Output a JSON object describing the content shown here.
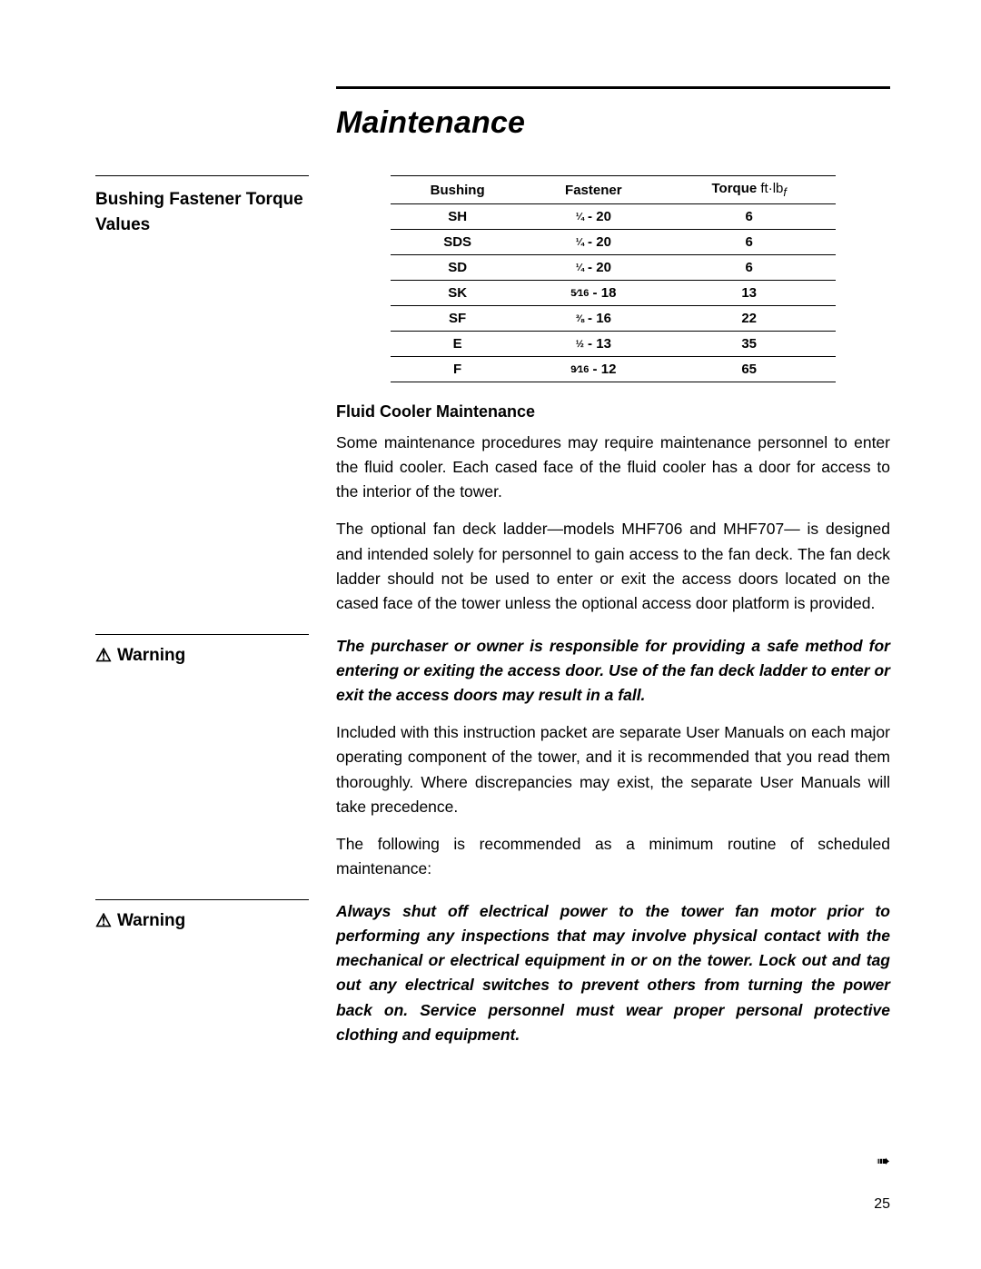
{
  "title": "Maintenance",
  "sidebar": {
    "section_heading": "Bushing Fastener Torque Values",
    "warning_label": "Warning"
  },
  "torque_table": {
    "columns": [
      "Bushing",
      "Fastener",
      "Torque"
    ],
    "torque_unit_html": "ft·lb",
    "torque_unit_sub": "f",
    "rows": [
      {
        "bushing": "SH",
        "fastener_frac": "¼",
        "fastener_tpi": "20",
        "torque": "6"
      },
      {
        "bushing": "SDS",
        "fastener_frac": "¼",
        "fastener_tpi": "20",
        "torque": "6"
      },
      {
        "bushing": "SD",
        "fastener_frac": "¼",
        "fastener_tpi": "20",
        "torque": "6"
      },
      {
        "bushing": "SK",
        "fastener_frac": "5⁄16",
        "fastener_tpi": "18",
        "torque": "13"
      },
      {
        "bushing": "SF",
        "fastener_frac": "⅜",
        "fastener_tpi": "16",
        "torque": "22"
      },
      {
        "bushing": "E",
        "fastener_frac": "½",
        "fastener_tpi": "13",
        "torque": "35"
      },
      {
        "bushing": "F",
        "fastener_frac": "9⁄16",
        "fastener_tpi": "12",
        "torque": "65"
      }
    ]
  },
  "content": {
    "fluid_heading": "Fluid Cooler Maintenance",
    "p1": "Some maintenance procedures may require maintenance personnel to enter the fluid cooler. Each cased face of the fluid cooler has a door for access to the interior of the tower.",
    "p2": "The optional fan deck ladder—models MHF706 and MHF707— is designed and intended solely for  personnel to gain access to the fan deck. The fan deck ladder should not be used to enter or exit the  access doors located on the cased face of the tower unless the optional access door platform is provided.",
    "warn1": "The purchaser or owner is responsible for providing a safe method for entering or exiting the access door. Use of the fan deck ladder to enter or exit the access doors may result in a fall.",
    "p3": "Included with this instruction packet are separate User Manuals on each major operating component of the tower, and it is recommended that you read them thoroughly. Where discrepancies may exist, the separate User Manuals will take precedence.",
    "p4": "The following is recommended as a minimum routine of scheduled maintenance:",
    "warn2": "Always shut off electrical power to the tower fan motor prior to performing any inspections that may involve physical contact with the mechanical or electrical equipment in or on the tower. Lock out and tag out any electrical switches to prevent others from turning the power back on. Service personnel must wear proper personal protective clothing and equipment."
  },
  "page_number": "25",
  "continue_glyph": "➠",
  "colors": {
    "text": "#000000",
    "background": "#ffffff"
  }
}
